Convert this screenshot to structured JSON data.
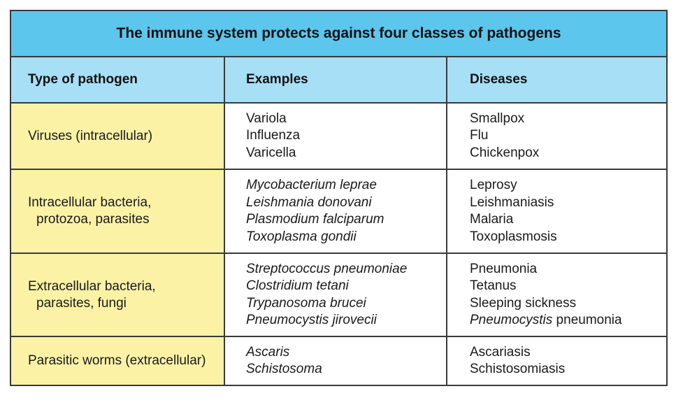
{
  "title": "The immune system protects against four classes of pathogens",
  "headers": {
    "type": "Type of pathogen",
    "examples": "Examples",
    "diseases": "Diseases"
  },
  "rows": [
    {
      "type_lines": [
        "Viruses (intracellular)"
      ],
      "examples": [
        "Variola",
        "Influenza",
        "Varicella"
      ],
      "diseases": [
        "Smallpox",
        "Flu",
        "Chickenpox"
      ]
    },
    {
      "type_lines": [
        "Intracellular bacteria,",
        "protozoa, parasites"
      ],
      "examples": [
        "Mycobacterium leprae",
        "Leishmania donovani",
        "Plasmodium falciparum",
        "Toxoplasma gondii"
      ],
      "diseases": [
        "Leprosy",
        "Leishmaniasis",
        "Malaria",
        "Toxoplasmosis"
      ]
    },
    {
      "type_lines": [
        "Extracellular bacteria,",
        "parasites, fungi"
      ],
      "examples": [
        "Streptococcus pneumoniae",
        "Clostridium tetani",
        "Trypanosoma brucei",
        "Pneumocystis jirovecii"
      ],
      "diseases": [
        "Pneumonia",
        "Tetanus",
        "Sleeping sickness"
      ],
      "diseases_last": {
        "italic": "Pneumocystis",
        "plain": " pneumonia"
      }
    },
    {
      "type_lines": [
        "Parasitic worms (extracellular)"
      ],
      "examples": [
        "Ascaris",
        "Schistosoma"
      ],
      "diseases": [
        "Ascariasis",
        "Schistosomiasis"
      ]
    }
  ],
  "colors": {
    "title_bg": "#5cc6ec",
    "header_bg": "#a7dff6",
    "type_col_bg": "#fbf2a6",
    "border": "#3a3a3a"
  }
}
